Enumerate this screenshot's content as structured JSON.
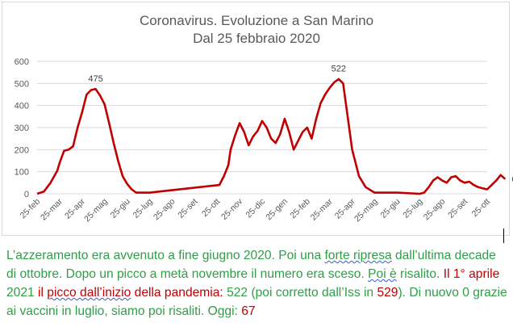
{
  "chart_data": {
    "type": "line",
    "title": "Coronavirus. Evoluzione a San Marino",
    "subtitle": "Dal 25 febbraio 2020",
    "xlabel": "",
    "ylabel": "",
    "ylim": [
      0,
      600
    ],
    "yticks": [
      "0",
      "100",
      "200",
      "300",
      "400",
      "500",
      "600"
    ],
    "grid": "horizontal",
    "legend": "none",
    "series_color": "#c00000",
    "categories": [
      "25-feb",
      "25-mar",
      "25-apr",
      "25-mag",
      "25-giu",
      "25-lug",
      "25-ago",
      "25-set",
      "25-ott",
      "25-nov",
      "25-dic",
      "25-gen",
      "25-feb",
      "25-mar",
      "25-apr",
      "25-mag",
      "25-giu",
      "25-lug",
      "25-ago",
      "25-set",
      "25-ott"
    ],
    "x": [
      0,
      0.3,
      0.6,
      0.9,
      1.0,
      1.2,
      1.4,
      1.6,
      1.8,
      2.0,
      2.2,
      2.4,
      2.6,
      2.8,
      3.0,
      3.2,
      3.4,
      3.6,
      3.8,
      4.0,
      4.2,
      4.4,
      4.7,
      4.9,
      5.0,
      8.1,
      8.3,
      8.5,
      8.6,
      8.8,
      9.0,
      9.2,
      9.4,
      9.6,
      9.8,
      10.0,
      10.2,
      10.4,
      10.6,
      10.8,
      11.0,
      11.2,
      11.4,
      11.6,
      11.8,
      12.0,
      12.2,
      12.4,
      12.6,
      12.8,
      13.0,
      13.2,
      13.4,
      13.6,
      13.8,
      14.0,
      14.3,
      14.6,
      15.0,
      16.0,
      17.0,
      17.2,
      17.4,
      17.6,
      17.8,
      18.0,
      18.2,
      18.4,
      18.6,
      18.8,
      19.0,
      19.2,
      19.4,
      19.6,
      19.8,
      20.0,
      20.2,
      20.4,
      20.6,
      20.8
    ],
    "values": [
      0,
      10,
      50,
      105,
      140,
      195,
      200,
      215,
      300,
      370,
      450,
      470,
      475,
      445,
      405,
      320,
      230,
      150,
      80,
      45,
      20,
      5,
      5,
      5,
      5,
      40,
      80,
      130,
      200,
      265,
      320,
      280,
      220,
      260,
      285,
      330,
      300,
      250,
      230,
      270,
      340,
      280,
      200,
      240,
      280,
      300,
      250,
      340,
      410,
      450,
      480,
      505,
      520,
      500,
      350,
      200,
      80,
      30,
      5,
      5,
      0,
      5,
      30,
      60,
      75,
      60,
      50,
      75,
      80,
      60,
      50,
      55,
      40,
      30,
      25,
      20,
      40,
      60,
      85,
      67
    ],
    "annotations": [
      {
        "x": 2.6,
        "value": 475,
        "label": "475"
      },
      {
        "x": 13.4,
        "value": 522,
        "label": "522"
      },
      {
        "x": 20.8,
        "value": 67,
        "label": "67"
      }
    ]
  },
  "caption": {
    "s1": "L’azzeramento era avvenuto a fine giugno 2020. Poi una ",
    "s2": "forte  ripresa",
    "s3": " dall’ultima decade di ottobre. Dopo un picco a metà novembre il numero era sceso. ",
    "s4": "Poi  è",
    "s5": " risalito.",
    "s6": " Il 1° aprile ",
    "s7": "2021",
    "s8": " il ",
    "s9": "picco  dall’inizio",
    "s10": " della pandemia: ",
    "s11": "522",
    "s12": " (poi corretto dall’Iss in ",
    "s13": "529",
    "s14": "). Di nuovo 0 grazie ai vaccini in luglio, siamo poi risaliti. Oggi: ",
    "s15": "67"
  }
}
